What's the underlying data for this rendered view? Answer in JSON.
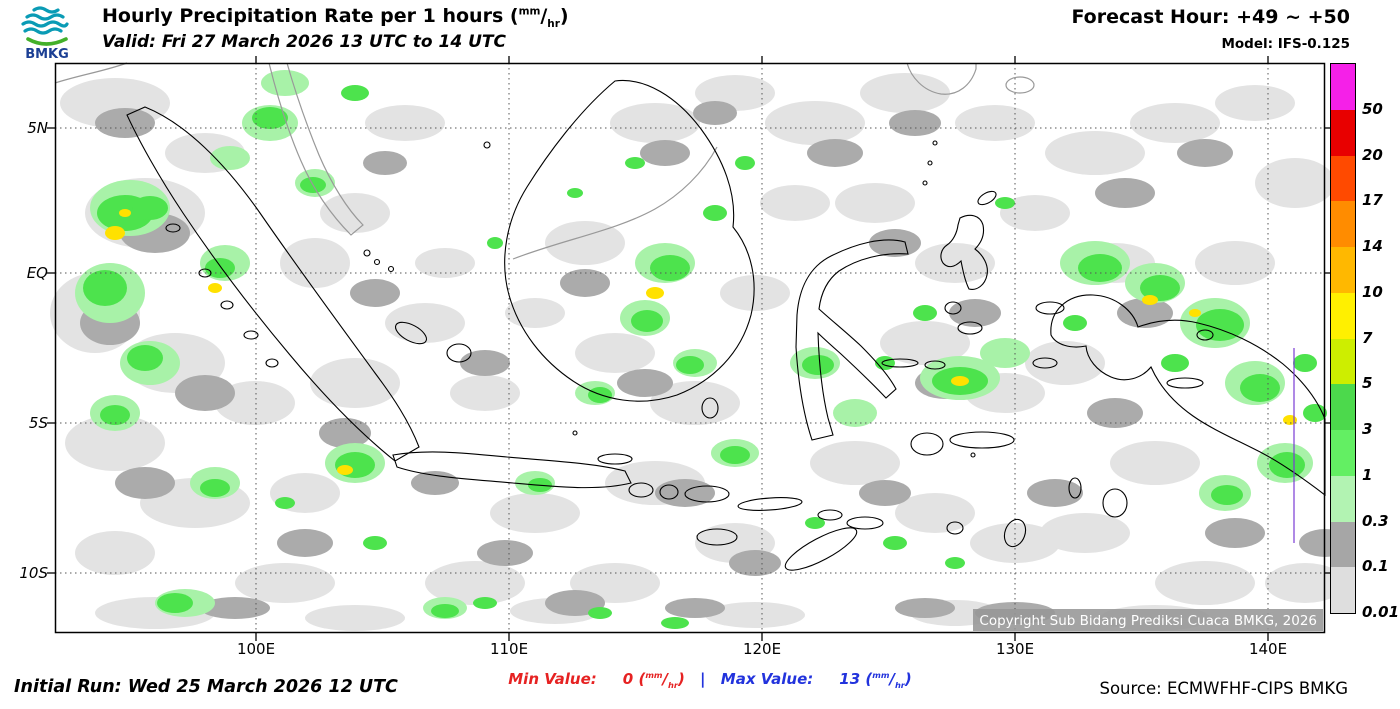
{
  "header": {
    "logo": "BMKG",
    "title_prefix": "Hourly Precipitation Rate per 1 hours ",
    "valid": "Valid: Fri 27 March 2026 13 UTC to 14 UTC",
    "forecast_hour": "Forecast Hour: +49 ~ +50",
    "model": "Model: IFS-0.125"
  },
  "units": {
    "open": "(",
    "num": "mm",
    "slash": "/",
    "den": "hr",
    "close": ")"
  },
  "map": {
    "lat_labels": [
      "5N",
      "EQ",
      "5S",
      "10S"
    ],
    "lon_labels": [
      "100E",
      "110E",
      "120E",
      "130E",
      "140E"
    ],
    "copyright": "Copyright Sub Bidang Prediksi Cuaca BMKG, 2026"
  },
  "legend": {
    "items": [
      {
        "label": "50",
        "color": "#f520e8"
      },
      {
        "label": "20",
        "color": "#e80000"
      },
      {
        "label": "17",
        "color": "#ff4a00"
      },
      {
        "label": "14",
        "color": "#ff8c00"
      },
      {
        "label": "10",
        "color": "#ffb800"
      },
      {
        "label": "7",
        "color": "#fff000"
      },
      {
        "label": "5",
        "color": "#cdee00"
      },
      {
        "label": "3",
        "color": "#4cd94c"
      },
      {
        "label": "1",
        "color": "#63ef63"
      },
      {
        "label": "0.3",
        "color": "#b2f3b2"
      },
      {
        "label": "0.1",
        "color": "#a6a6a6"
      },
      {
        "label": "0.01",
        "color": "#dedede"
      }
    ]
  },
  "footer": {
    "initial_run": "Initial Run: Wed 25 March 2026 12 UTC",
    "min_label": "Min Value:",
    "min_value": "0",
    "separator": "|",
    "max_label": "Max Value:",
    "max_value": "13",
    "source": "Source: ECMWFHF-CIPS BMKG"
  },
  "chart_data": {
    "type": "heatmap",
    "title": "Hourly Precipitation Rate per 1 hours (mm/hr)",
    "valid": "Fri 27 March 2026 13 UTC to 14 UTC",
    "forecast_hour": "+49 ~ +50",
    "model": "IFS-0.125",
    "initial_run": "Wed 25 March 2026 12 UTC",
    "source": "ECMWFHF-CIPS BMKG",
    "scale_levels_mm_per_hr": [
      0.01,
      0.1,
      0.3,
      1,
      3,
      5,
      7,
      10,
      14,
      17,
      20,
      50
    ],
    "x_ticks": [
      "100E",
      "110E",
      "120E",
      "130E",
      "140E"
    ],
    "y_ticks": [
      "5N",
      "EQ",
      "5S",
      "10S"
    ],
    "min_value": 0,
    "max_value": 13
  }
}
